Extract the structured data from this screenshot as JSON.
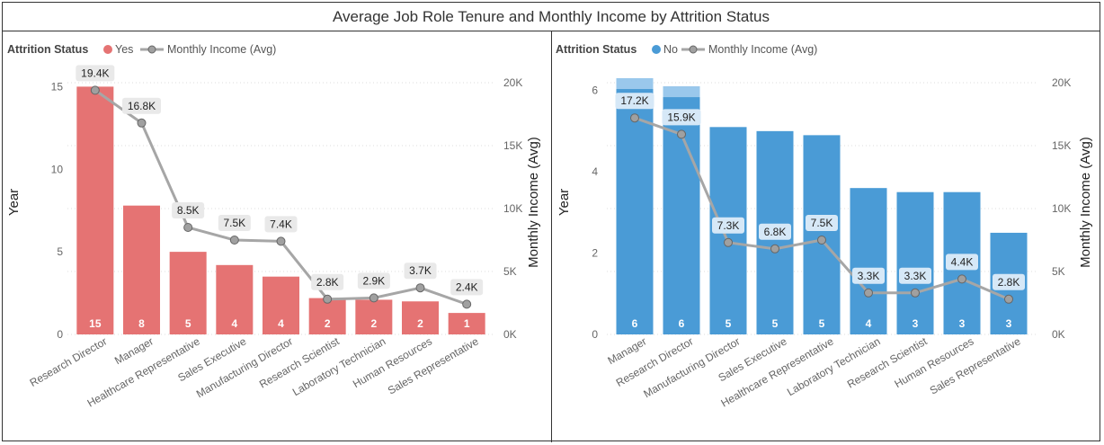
{
  "title": "Average Job Role Tenure and Monthly Income by Attrition Status",
  "colors": {
    "yes": "#E57373",
    "no": "#4A9BD6",
    "line": "#A6A6A6",
    "no_overlay": "#A8D0F0"
  },
  "chart_data": [
    {
      "type": "bar",
      "panel": "left",
      "legend": {
        "title": "Attrition Status",
        "series": "Yes",
        "line": "Monthly Income (Avg)",
        "position": "top-left"
      },
      "categories": [
        "Research Director",
        "Manager",
        "Healthcare Representative",
        "Sales Executive",
        "Manufacturing Director",
        "Research Scientist",
        "Laboratory Technician",
        "Human Resources",
        "Sales Representative"
      ],
      "bar_values": [
        15,
        7.8,
        5,
        4.2,
        3.5,
        2.2,
        2.1,
        2,
        1.3
      ],
      "bar_labels": [
        "15",
        "8",
        "5",
        "4",
        "4",
        "2",
        "2",
        "2",
        "1"
      ],
      "line_values": [
        19400,
        16800,
        8500,
        7500,
        7400,
        2800,
        2900,
        3700,
        2400
      ],
      "line_labels": [
        "19.4K",
        "16.8K",
        "8.5K",
        "7.5K",
        "7.4K",
        "2.8K",
        "2.9K",
        "3.7K",
        "2.4K"
      ],
      "ylabel": "Year",
      "y2label": "Monthly Income (Avg)",
      "ylim": [
        0,
        16
      ],
      "yticks": [
        0,
        5,
        10,
        15
      ],
      "ytick_labels": [
        "0",
        "5",
        "10",
        "15"
      ],
      "y2lim": [
        0,
        21000
      ],
      "y2ticks": [
        0,
        5000,
        10000,
        15000,
        20000
      ],
      "y2tick_labels": [
        "0K",
        "5K",
        "10K",
        "15K",
        "20K"
      ]
    },
    {
      "type": "bar",
      "panel": "right",
      "legend": {
        "title": "Attrition Status",
        "series": "No",
        "line": "Monthly Income (Avg)",
        "position": "top-left"
      },
      "categories": [
        "Manager",
        "Research Director",
        "Manufacturing Director",
        "Sales Executive",
        "Healthcare Representative",
        "Laboratory Technician",
        "Research Scientist",
        "Human Resources",
        "Sales Representative"
      ],
      "bar_values": [
        6.3,
        6.1,
        5.1,
        5.0,
        4.9,
        3.6,
        3.5,
        3.5,
        2.5
      ],
      "bar_labels": [
        "6",
        "6",
        "5",
        "5",
        "5",
        "4",
        "3",
        "3",
        "3"
      ],
      "line_values": [
        17200,
        15900,
        7300,
        6800,
        7500,
        3300,
        3300,
        4400,
        2800
      ],
      "line_labels": [
        "17.2K",
        "15.9K",
        "7.3K",
        "6.8K",
        "7.5K",
        "3.3K",
        "3.3K",
        "4.4K",
        "2.8K"
      ],
      "ylabel": "Year",
      "y2label": "Monthly Income (Avg)",
      "ylim": [
        0,
        6.5
      ],
      "yticks": [
        0,
        2,
        4,
        6
      ],
      "ytick_labels": [
        "0",
        "2",
        "4",
        "6"
      ],
      "y2lim": [
        0,
        21000
      ],
      "y2ticks": [
        0,
        5000,
        10000,
        15000,
        20000
      ],
      "y2tick_labels": [
        "0K",
        "5K",
        "10K",
        "15K",
        "20K"
      ]
    }
  ]
}
